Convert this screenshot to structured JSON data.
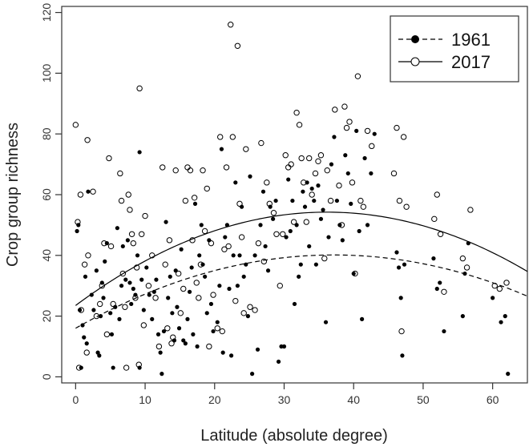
{
  "chart_data": {
    "type": "scatter",
    "title": "",
    "xlabel": "Latitude (absolute degree)",
    "ylabel": "Crop group richness",
    "xlim": [
      -2,
      65
    ],
    "ylim": [
      -2,
      122
    ],
    "xticks": [
      0,
      10,
      20,
      30,
      40,
      50,
      60
    ],
    "yticks": [
      0,
      20,
      40,
      60,
      80,
      100,
      120
    ],
    "grid": false,
    "legend_position": "top-right",
    "series": [
      {
        "name": "1961",
        "marker": "filled-circle",
        "line": "dashed",
        "color": "#000000",
        "fit": {
          "type": "quadratic",
          "coefficients": [
            16,
            1.3,
            -0.0175
          ]
        },
        "points": [
          [
            0.2,
            48
          ],
          [
            0.4,
            50
          ],
          [
            0.6,
            22
          ],
          [
            0.8,
            3
          ],
          [
            1.0,
            17
          ],
          [
            1.2,
            13
          ],
          [
            1.4,
            33
          ],
          [
            1.6,
            11
          ],
          [
            1.8,
            61
          ],
          [
            2.3,
            27
          ],
          [
            2.6,
            22
          ],
          [
            3.0,
            35
          ],
          [
            3.2,
            8
          ],
          [
            3.4,
            7
          ],
          [
            3.6,
            20
          ],
          [
            3.8,
            31
          ],
          [
            4.0,
            26
          ],
          [
            4.2,
            38
          ],
          [
            4.5,
            44
          ],
          [
            5.0,
            21
          ],
          [
            5.2,
            14
          ],
          [
            5.4,
            3
          ],
          [
            5.7,
            23
          ],
          [
            6.0,
            49
          ],
          [
            6.3,
            19
          ],
          [
            6.6,
            30
          ],
          [
            6.8,
            43
          ],
          [
            7.2,
            32
          ],
          [
            7.5,
            45
          ],
          [
            7.8,
            31
          ],
          [
            8.0,
            24
          ],
          [
            8.3,
            29
          ],
          [
            8.6,
            27
          ],
          [
            8.9,
            40
          ],
          [
            9.2,
            74
          ],
          [
            9.2,
            3
          ],
          [
            9.5,
            32
          ],
          [
            9.8,
            22
          ],
          [
            10.2,
            36
          ],
          [
            10.6,
            27
          ],
          [
            11.0,
            19
          ],
          [
            11.3,
            28
          ],
          [
            11.6,
            32
          ],
          [
            11.9,
            14
          ],
          [
            12.2,
            8
          ],
          [
            12.4,
            1
          ],
          [
            12.7,
            15
          ],
          [
            13.0,
            51
          ],
          [
            13.3,
            26
          ],
          [
            13.6,
            33
          ],
          [
            13.9,
            21
          ],
          [
            14.2,
            12
          ],
          [
            14.4,
            35
          ],
          [
            14.6,
            23
          ],
          [
            14.9,
            16
          ],
          [
            15.2,
            42
          ],
          [
            15.5,
            12
          ],
          [
            15.8,
            11
          ],
          [
            16.1,
            19
          ],
          [
            16.4,
            28
          ],
          [
            16.7,
            36
          ],
          [
            16.9,
            14
          ],
          [
            17.2,
            57
          ],
          [
            17.5,
            10
          ],
          [
            17.8,
            40
          ],
          [
            18.1,
            50
          ],
          [
            18.3,
            37
          ],
          [
            18.6,
            33
          ],
          [
            18.9,
            21
          ],
          [
            19.2,
            45
          ],
          [
            19.5,
            24
          ],
          [
            19.8,
            15
          ],
          [
            20.4,
            18
          ],
          [
            20.7,
            30
          ],
          [
            21.0,
            75
          ],
          [
            21.2,
            8
          ],
          [
            21.5,
            46
          ],
          [
            21.8,
            50
          ],
          [
            22.1,
            29
          ],
          [
            22.4,
            7
          ],
          [
            22.7,
            40
          ],
          [
            23.0,
            64
          ],
          [
            23.3,
            30
          ],
          [
            23.6,
            40
          ],
          [
            23.9,
            56
          ],
          [
            24.2,
            33
          ],
          [
            24.5,
            37
          ],
          [
            24.8,
            20
          ],
          [
            25.1,
            66
          ],
          [
            25.4,
            1
          ],
          [
            25.8,
            40
          ],
          [
            26.2,
            9
          ],
          [
            26.6,
            50
          ],
          [
            27.0,
            61
          ],
          [
            27.3,
            43
          ],
          [
            27.7,
            35
          ],
          [
            28.0,
            56
          ],
          [
            28.4,
            52
          ],
          [
            28.8,
            58
          ],
          [
            29.2,
            5
          ],
          [
            29.6,
            10
          ],
          [
            30.0,
            10
          ],
          [
            30.3,
            46
          ],
          [
            30.6,
            65
          ],
          [
            30.9,
            48
          ],
          [
            31.2,
            58
          ],
          [
            31.5,
            24
          ],
          [
            31.8,
            50
          ],
          [
            32.1,
            33
          ],
          [
            32.4,
            37
          ],
          [
            32.7,
            61
          ],
          [
            33.0,
            56
          ],
          [
            33.3,
            64
          ],
          [
            33.6,
            43
          ],
          [
            34.0,
            62
          ],
          [
            34.3,
            58
          ],
          [
            34.6,
            37
          ],
          [
            34.9,
            63
          ],
          [
            35.3,
            52
          ],
          [
            35.6,
            55
          ],
          [
            36.0,
            18
          ],
          [
            36.4,
            46
          ],
          [
            36.8,
            70
          ],
          [
            37.2,
            79
          ],
          [
            37.6,
            58
          ],
          [
            38.0,
            50
          ],
          [
            38.4,
            45
          ],
          [
            38.8,
            73
          ],
          [
            39.2,
            67
          ],
          [
            39.6,
            57
          ],
          [
            40.0,
            34
          ],
          [
            40.4,
            81
          ],
          [
            40.8,
            48
          ],
          [
            41.2,
            19
          ],
          [
            41.6,
            72
          ],
          [
            42.0,
            50
          ],
          [
            42.5,
            67
          ],
          [
            43.0,
            80
          ],
          [
            46.2,
            41
          ],
          [
            46.5,
            36
          ],
          [
            46.8,
            26
          ],
          [
            47.0,
            7
          ],
          [
            47.3,
            37
          ],
          [
            51.5,
            39
          ],
          [
            52.0,
            29
          ],
          [
            52.4,
            31
          ],
          [
            53.0,
            15
          ],
          [
            55.7,
            20
          ],
          [
            56.0,
            34
          ],
          [
            56.5,
            44
          ],
          [
            60.0,
            26
          ],
          [
            61.2,
            18
          ],
          [
            61.8,
            20
          ],
          [
            62.2,
            1
          ]
        ]
      },
      {
        "name": "2017",
        "marker": "open-circle",
        "line": "solid",
        "color": "#000000",
        "fit": {
          "type": "quadratic",
          "coefficients": [
            23.5,
            1.7,
            -0.0235
          ]
        },
        "points": [
          [
            0.0,
            83
          ],
          [
            0.3,
            51
          ],
          [
            0.5,
            3
          ],
          [
            0.7,
            60
          ],
          [
            0.8,
            22
          ],
          [
            1.3,
            37
          ],
          [
            1.6,
            8
          ],
          [
            1.7,
            78
          ],
          [
            1.8,
            40
          ],
          [
            2.5,
            61
          ],
          [
            3.0,
            20
          ],
          [
            3.5,
            24
          ],
          [
            3.8,
            30
          ],
          [
            4.1,
            44
          ],
          [
            4.5,
            14
          ],
          [
            4.8,
            72
          ],
          [
            5.1,
            43
          ],
          [
            5.4,
            24
          ],
          [
            6.4,
            67
          ],
          [
            6.6,
            58
          ],
          [
            6.8,
            34
          ],
          [
            7.1,
            23
          ],
          [
            7.3,
            3
          ],
          [
            7.6,
            60
          ],
          [
            7.8,
            55
          ],
          [
            8.1,
            47
          ],
          [
            8.3,
            44
          ],
          [
            8.6,
            26
          ],
          [
            8.8,
            36
          ],
          [
            9.1,
            4
          ],
          [
            9.2,
            95
          ],
          [
            9.5,
            47
          ],
          [
            9.8,
            17
          ],
          [
            10.0,
            53
          ],
          [
            10.5,
            30
          ],
          [
            11.0,
            40
          ],
          [
            11.5,
            26
          ],
          [
            12.0,
            10
          ],
          [
            12.5,
            69
          ],
          [
            12.9,
            37
          ],
          [
            13.2,
            16
          ],
          [
            13.5,
            45
          ],
          [
            13.8,
            11
          ],
          [
            14.0,
            13
          ],
          [
            14.4,
            68
          ],
          [
            14.8,
            34
          ],
          [
            15.1,
            21
          ],
          [
            15.5,
            29
          ],
          [
            15.8,
            58
          ],
          [
            16.1,
            69
          ],
          [
            16.5,
            68
          ],
          [
            16.8,
            45
          ],
          [
            17.1,
            59
          ],
          [
            17.4,
            31
          ],
          [
            17.7,
            26
          ],
          [
            18.0,
            37
          ],
          [
            18.3,
            68
          ],
          [
            18.6,
            48
          ],
          [
            18.9,
            62
          ],
          [
            19.2,
            10
          ],
          [
            19.5,
            44
          ],
          [
            19.8,
            27
          ],
          [
            20.4,
            16
          ],
          [
            20.8,
            79
          ],
          [
            21.1,
            15
          ],
          [
            21.4,
            42
          ],
          [
            21.7,
            69
          ],
          [
            22.0,
            43
          ],
          [
            22.3,
            116
          ],
          [
            22.6,
            79
          ],
          [
            23.0,
            25
          ],
          [
            23.3,
            109
          ],
          [
            23.6,
            57
          ],
          [
            23.9,
            46
          ],
          [
            24.2,
            21
          ],
          [
            24.5,
            75
          ],
          [
            25.1,
            23
          ],
          [
            25.8,
            22
          ],
          [
            26.3,
            44
          ],
          [
            26.7,
            77
          ],
          [
            27.1,
            38
          ],
          [
            27.5,
            64
          ],
          [
            27.9,
            57
          ],
          [
            28.5,
            54
          ],
          [
            28.9,
            47
          ],
          [
            29.4,
            30
          ],
          [
            29.8,
            47
          ],
          [
            30.2,
            73
          ],
          [
            30.6,
            69
          ],
          [
            31.0,
            70
          ],
          [
            31.4,
            51
          ],
          [
            31.8,
            87
          ],
          [
            32.2,
            83
          ],
          [
            32.5,
            72
          ],
          [
            32.8,
            64
          ],
          [
            33.2,
            51
          ],
          [
            33.6,
            72
          ],
          [
            34.0,
            60
          ],
          [
            34.5,
            67
          ],
          [
            34.9,
            71
          ],
          [
            35.3,
            73
          ],
          [
            35.8,
            39
          ],
          [
            36.2,
            68
          ],
          [
            36.7,
            58
          ],
          [
            37.3,
            88
          ],
          [
            37.9,
            63
          ],
          [
            38.3,
            50
          ],
          [
            38.7,
            89
          ],
          [
            39.0,
            82
          ],
          [
            39.4,
            84
          ],
          [
            39.8,
            64
          ],
          [
            40.2,
            34
          ],
          [
            40.6,
            99
          ],
          [
            41.0,
            58
          ],
          [
            41.4,
            56
          ],
          [
            42.0,
            81
          ],
          [
            42.6,
            76
          ],
          [
            45.8,
            67
          ],
          [
            46.2,
            82
          ],
          [
            46.6,
            58
          ],
          [
            46.9,
            15
          ],
          [
            47.2,
            79
          ],
          [
            47.6,
            56
          ],
          [
            51.6,
            52
          ],
          [
            52.0,
            60
          ],
          [
            52.5,
            47
          ],
          [
            53.0,
            28
          ],
          [
            55.7,
            39
          ],
          [
            56.3,
            36
          ],
          [
            56.8,
            55
          ],
          [
            60.3,
            30
          ],
          [
            61.0,
            29
          ],
          [
            62.0,
            31
          ]
        ]
      }
    ]
  }
}
